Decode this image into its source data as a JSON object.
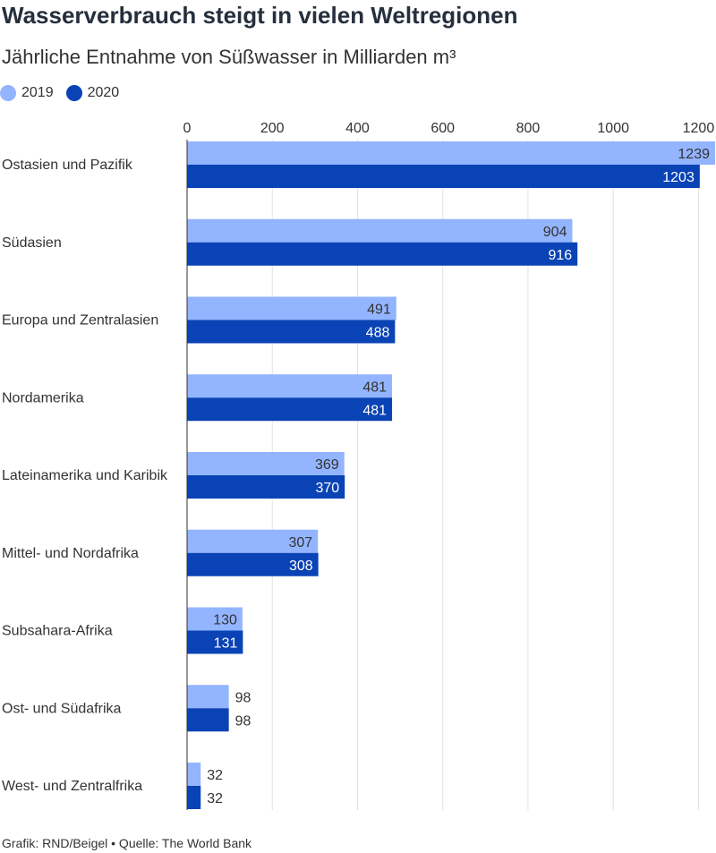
{
  "chart_data": {
    "type": "bar",
    "orientation": "horizontal",
    "title": "Wasserverbrauch steigt in vielen Weltregionen",
    "subtitle": "Jährliche Entnahme von Süßwasser in Milliarden m³",
    "categories": [
      "Ostasien und Pazifik",
      "Südasien",
      "Europa und Zentralasien",
      "Nordamerika",
      "Lateinamerika und Karibik",
      "Mittel- und Nordafrika",
      "Subsahara-Afrika",
      "Ost- und Südafrika",
      "West- und Zentralfrika"
    ],
    "series": [
      {
        "name": "2019",
        "color": "#93b4ff",
        "values": [
          1239,
          904,
          491,
          481,
          369,
          307,
          130,
          98,
          32
        ]
      },
      {
        "name": "2020",
        "color": "#0a43b5",
        "values": [
          1203,
          916,
          488,
          481,
          370,
          308,
          131,
          98,
          32
        ]
      }
    ],
    "xlim": [
      0,
      1239
    ],
    "ticks": [
      0,
      200,
      400,
      600,
      800,
      1000,
      1200
    ],
    "tick_labels": [
      "0",
      "200",
      "400",
      "600",
      "800",
      "1000",
      "1200"
    ],
    "grid": true,
    "legend_position": "top-left",
    "source": "Grafik: RND/Beigel • Quelle: The World Bank"
  }
}
